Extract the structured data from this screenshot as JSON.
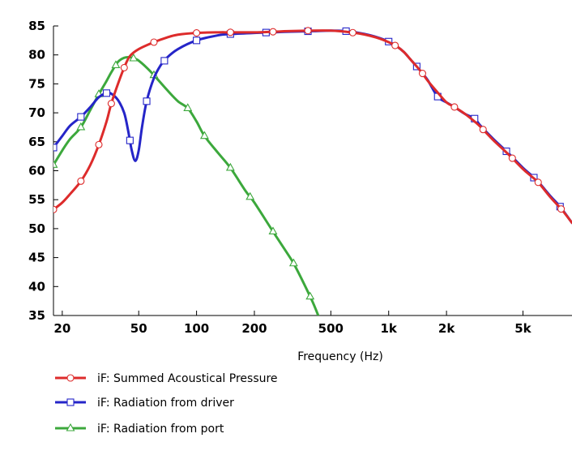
{
  "chart_data": {
    "type": "line",
    "title": "",
    "xlabel": "Frequency  (Hz)",
    "ylabel": "",
    "x_scale": "log",
    "xlim": [
      18,
      9000
    ],
    "ylim": [
      35,
      85
    ],
    "grid": false,
    "legend_position": "bottom-left",
    "y_ticks": [
      85,
      80,
      75,
      70,
      65,
      60,
      55,
      50,
      45,
      40,
      35
    ],
    "x_ticks": [
      {
        "value": 20,
        "label": "20"
      },
      {
        "value": 50,
        "label": "50"
      },
      {
        "value": 100,
        "label": "100"
      },
      {
        "value": 200,
        "label": "200"
      },
      {
        "value": 500,
        "label": "500"
      },
      {
        "value": 1000,
        "label": "1k"
      },
      {
        "value": 2000,
        "label": "2k"
      },
      {
        "value": 5000,
        "label": "5k"
      }
    ],
    "series": [
      {
        "name": "iF: Summed Acoustical Pressure",
        "color": "#dd2b2b",
        "marker": "circle",
        "points": [
          [
            18,
            53.3
          ],
          [
            20,
            54.5
          ],
          [
            22,
            56
          ],
          [
            25,
            58.2
          ],
          [
            28,
            61
          ],
          [
            31,
            64.5
          ],
          [
            34,
            68.5
          ],
          [
            36,
            71.6
          ],
          [
            39,
            75
          ],
          [
            42,
            77.8
          ],
          [
            45,
            79.8
          ],
          [
            50,
            81
          ],
          [
            60,
            82.2
          ],
          [
            70,
            83
          ],
          [
            80,
            83.5
          ],
          [
            100,
            83.8
          ],
          [
            130,
            83.9
          ],
          [
            150,
            83.9
          ],
          [
            200,
            83.9
          ],
          [
            250,
            84.0
          ],
          [
            300,
            84.1
          ],
          [
            400,
            84.2
          ],
          [
            500,
            84.2
          ],
          [
            600,
            84.0
          ],
          [
            700,
            83.7
          ],
          [
            800,
            83.3
          ],
          [
            900,
            82.8
          ],
          [
            1000,
            82.2
          ],
          [
            1100,
            81.5
          ],
          [
            1200,
            80.5
          ],
          [
            1300,
            79.2
          ],
          [
            1400,
            78
          ],
          [
            1500,
            76.8
          ],
          [
            1600,
            75.5
          ],
          [
            1800,
            73.5
          ],
          [
            2000,
            71.8
          ],
          [
            2200,
            71
          ],
          [
            2500,
            69.8
          ],
          [
            2800,
            68.5
          ],
          [
            3000,
            67.6
          ],
          [
            3500,
            65.3
          ],
          [
            4000,
            63.5
          ],
          [
            4300,
            62.5
          ],
          [
            5000,
            60.3
          ],
          [
            5500,
            59.1
          ],
          [
            6000,
            58.0
          ],
          [
            7000,
            55.3
          ],
          [
            8000,
            53.2
          ],
          [
            9000,
            51
          ]
        ],
        "marker_x": [
          18,
          25,
          31,
          36,
          42,
          60,
          100,
          150,
          250,
          380,
          650,
          1080,
          1500,
          2200,
          3100,
          4400,
          6000,
          7900
        ]
      },
      {
        "name": "iF: Radiation from driver",
        "color": "#2525c8",
        "marker": "square",
        "points": [
          [
            18,
            64
          ],
          [
            20,
            66
          ],
          [
            22,
            67.8
          ],
          [
            25,
            69.3
          ],
          [
            28,
            71
          ],
          [
            31,
            72.7
          ],
          [
            34,
            73.4
          ],
          [
            36,
            73.3
          ],
          [
            39,
            72.2
          ],
          [
            42,
            70
          ],
          [
            44,
            67
          ],
          [
            46,
            63.5
          ],
          [
            48,
            61.7
          ],
          [
            50,
            63.5
          ],
          [
            52,
            67.5
          ],
          [
            55,
            72
          ],
          [
            60,
            76
          ],
          [
            65,
            78.2
          ],
          [
            70,
            79.5
          ],
          [
            80,
            81
          ],
          [
            100,
            82.5
          ],
          [
            130,
            83.4
          ],
          [
            150,
            83.6
          ],
          [
            200,
            83.8
          ],
          [
            250,
            83.9
          ],
          [
            300,
            84.0
          ],
          [
            400,
            84.1
          ],
          [
            500,
            84.2
          ],
          [
            600,
            84.1
          ],
          [
            700,
            83.8
          ],
          [
            800,
            83.4
          ],
          [
            900,
            82.9
          ],
          [
            1000,
            82.3
          ],
          [
            1100,
            81.5
          ],
          [
            1200,
            80.5
          ],
          [
            1300,
            79.2
          ],
          [
            1400,
            78
          ],
          [
            1500,
            76.8
          ],
          [
            1600,
            75.6
          ],
          [
            1800,
            72.8
          ],
          [
            2000,
            71.8
          ],
          [
            2200,
            71
          ],
          [
            2500,
            69.8
          ],
          [
            2800,
            69
          ],
          [
            3000,
            67.8
          ],
          [
            3500,
            65.5
          ],
          [
            4000,
            63.7
          ],
          [
            4300,
            62.7
          ],
          [
            5000,
            60.5
          ],
          [
            5500,
            59.3
          ],
          [
            6000,
            58.1
          ],
          [
            7000,
            55.5
          ],
          [
            7800,
            53.8
          ],
          [
            9000,
            51
          ]
        ],
        "marker_x": [
          18,
          25,
          34,
          45,
          55,
          68,
          100,
          150,
          230,
          380,
          600,
          1000,
          1400,
          1800,
          2800,
          4100,
          5700,
          7800
        ]
      },
      {
        "name": "iF: Radiation from port",
        "color": "#3ca83c",
        "marker": "triangle",
        "points": [
          [
            18,
            61
          ],
          [
            20,
            63.5
          ],
          [
            22,
            65.5
          ],
          [
            25,
            67.5
          ],
          [
            28,
            70.5
          ],
          [
            31,
            73.2
          ],
          [
            34,
            75.5
          ],
          [
            36,
            77
          ],
          [
            39,
            78.8
          ],
          [
            42,
            79.5
          ],
          [
            45,
            79.6
          ],
          [
            48,
            79.3
          ],
          [
            50,
            79
          ],
          [
            55,
            77.8
          ],
          [
            60,
            76.5
          ],
          [
            70,
            74
          ],
          [
            80,
            72
          ],
          [
            90,
            70.8
          ],
          [
            100,
            68.5
          ],
          [
            110,
            66
          ],
          [
            130,
            63
          ],
          [
            150,
            60.5
          ],
          [
            180,
            56.5
          ],
          [
            200,
            54.5
          ],
          [
            250,
            49.5
          ],
          [
            300,
            45.5
          ],
          [
            320,
            44
          ],
          [
            350,
            41.5
          ],
          [
            400,
            37.5
          ],
          [
            430,
            35
          ]
        ],
        "marker_x": [
          18,
          25,
          31,
          38,
          47,
          60,
          90,
          110,
          150,
          190,
          250,
          320,
          390
        ]
      }
    ]
  }
}
